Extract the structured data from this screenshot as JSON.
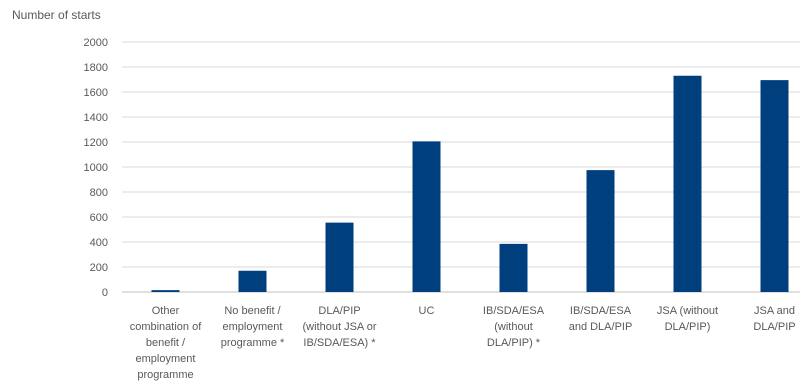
{
  "chart_data": {
    "type": "bar",
    "ylabel": "Number of starts",
    "ylim": [
      0,
      2000
    ],
    "yticks": [
      0,
      200,
      400,
      600,
      800,
      1000,
      1200,
      1400,
      1600,
      1800,
      2000
    ],
    "grid": true,
    "categories": [
      "Other\ncombination of\nbenefit /\nemployment\nprogramme",
      "No benefit /\nemployment\nprogramme *",
      "DLA/PIP\n(without JSA or\nIB/SDA/ESA) *",
      "UC",
      "IB/SDA/ESA\n(without\nDLA/PIP) *",
      "IB/SDA/ESA\nand DLA/PIP",
      "JSA (without\nDLA/PIP)",
      "JSA and\nDLA/PIP"
    ],
    "values": [
      15,
      170,
      555,
      1205,
      385,
      975,
      1730,
      1695
    ],
    "bar_color": "#003f7d"
  }
}
